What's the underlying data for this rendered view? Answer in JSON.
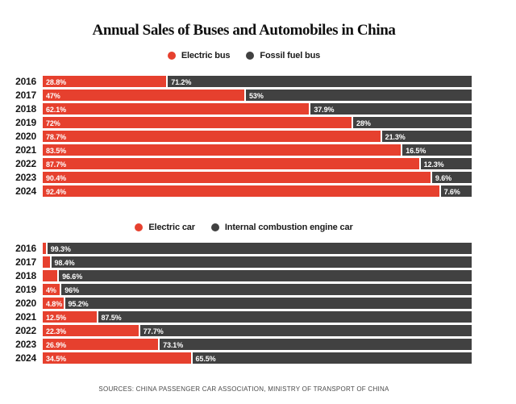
{
  "title": "Annual Sales of Buses and Automobiles in China",
  "footer": "SOURCES: CHINA PASSENGER CAR ASSOCIATION, MINISTRY OF TRANSPORT OF CHINA",
  "colors": {
    "electric_red": "#e6402e",
    "conventional_gray": "#414141"
  },
  "chart_data": [
    {
      "type": "bar",
      "slug": "bus-sales",
      "orientation": "horizontal",
      "stacked": true,
      "unit": "%",
      "xlim": [
        0,
        100
      ],
      "legend_position": "top",
      "categories": [
        "2016",
        "2017",
        "2018",
        "2019",
        "2020",
        "2021",
        "2022",
        "2023",
        "2024"
      ],
      "series": [
        {
          "name": "Electric bus",
          "color": "#e6402e",
          "values": [
            28.8,
            47,
            62.1,
            72,
            78.7,
            83.5,
            87.7,
            90.4,
            92.4
          ],
          "labels": [
            "28.8%",
            "47%",
            "62.1%",
            "72%",
            "78.7%",
            "83.5%",
            "87.7%",
            "90.4%",
            "92.4%"
          ]
        },
        {
          "name": "Fossil fuel bus",
          "color": "#414141",
          "values": [
            71.2,
            53,
            37.9,
            28,
            21.3,
            16.5,
            12.3,
            9.6,
            7.6
          ],
          "labels": [
            "71.2%",
            "53%",
            "37.9%",
            "28%",
            "21.3%",
            "16.5%",
            "12.3%",
            "9.6%",
            "7.6%"
          ]
        }
      ]
    },
    {
      "type": "bar",
      "slug": "car-sales",
      "orientation": "horizontal",
      "stacked": true,
      "unit": "%",
      "xlim": [
        0,
        100
      ],
      "legend_position": "top",
      "categories": [
        "2016",
        "2017",
        "2018",
        "2019",
        "2020",
        "2021",
        "2022",
        "2023",
        "2024"
      ],
      "series": [
        {
          "name": "Electric car",
          "color": "#e6402e",
          "values": [
            0.7,
            1.6,
            3.4,
            4,
            4.8,
            12.5,
            22.3,
            26.9,
            34.5
          ],
          "labels": [
            "",
            "",
            "",
            "4%",
            "4.8%",
            "12.5%",
            "22.3%",
            "26.9%",
            "34.5%"
          ]
        },
        {
          "name": "Internal combustion engine car",
          "color": "#414141",
          "values": [
            99.3,
            98.4,
            96.6,
            96,
            95.2,
            87.5,
            77.7,
            73.1,
            65.5
          ],
          "labels": [
            "99.3%",
            "98.4%",
            "96.6%",
            "96%",
            "95.2%",
            "87.5%",
            "77.7%",
            "73.1%",
            "65.5%"
          ]
        }
      ]
    }
  ]
}
